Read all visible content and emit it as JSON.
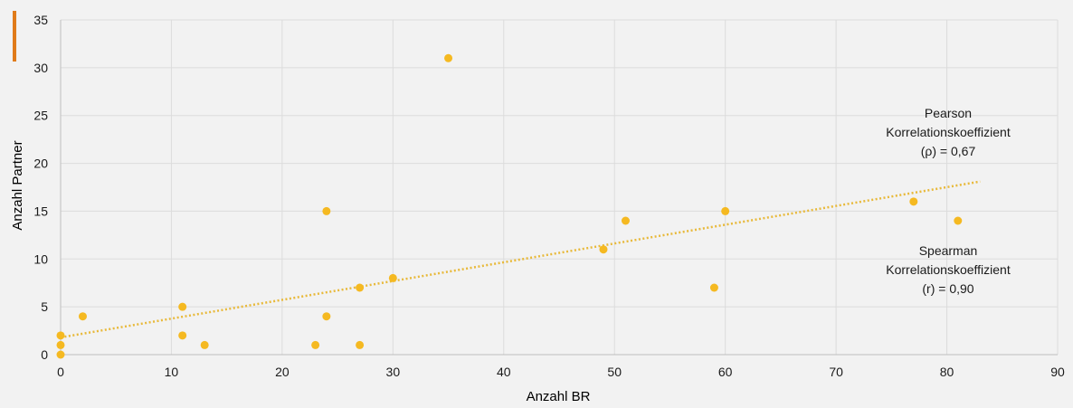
{
  "colors": {
    "background": "#f2f2f2",
    "accent_bar": "#e07b1a",
    "points": "#f5b921",
    "trendline": "#e8b93a",
    "grid": "#dcdcdc",
    "axis": "#bfbfbf"
  },
  "chart_data": {
    "type": "scatter",
    "title": "",
    "xlabel": "Anzahl BR",
    "ylabel": "Anzahl Partner",
    "xlim": [
      0,
      90
    ],
    "ylim": [
      0,
      35
    ],
    "x_ticks": [
      0,
      10,
      20,
      30,
      40,
      50,
      60,
      70,
      80,
      90
    ],
    "y_ticks": [
      0,
      5,
      10,
      15,
      20,
      25,
      30,
      35
    ],
    "grid": true,
    "series": [
      {
        "points": [
          {
            "x": 0,
            "y": 0
          },
          {
            "x": 0,
            "y": 1
          },
          {
            "x": 0,
            "y": 2
          },
          {
            "x": 2,
            "y": 4
          },
          {
            "x": 11,
            "y": 5
          },
          {
            "x": 11,
            "y": 2
          },
          {
            "x": 13,
            "y": 1
          },
          {
            "x": 23,
            "y": 1
          },
          {
            "x": 24,
            "y": 15
          },
          {
            "x": 24,
            "y": 4
          },
          {
            "x": 27,
            "y": 7
          },
          {
            "x": 27,
            "y": 1
          },
          {
            "x": 30,
            "y": 8
          },
          {
            "x": 35,
            "y": 31
          },
          {
            "x": 49,
            "y": 11
          },
          {
            "x": 51,
            "y": 14
          },
          {
            "x": 59,
            "y": 7
          },
          {
            "x": 60,
            "y": 15
          },
          {
            "x": 77,
            "y": 16
          },
          {
            "x": 81,
            "y": 14
          }
        ]
      }
    ],
    "trendline": {
      "style": "dotted",
      "from": {
        "x": 0,
        "y": 1.8
      },
      "to": {
        "x": 83,
        "y": 18.1
      }
    },
    "annotations": [
      {
        "id": "pearson",
        "lines": [
          "Pearson",
          "Korrelationskoeffizient",
          "(ρ) = 0,67"
        ]
      },
      {
        "id": "spearman",
        "lines": [
          "Spearman",
          "Korrelationskoeffizient",
          "(r) = 0,90"
        ]
      }
    ]
  }
}
